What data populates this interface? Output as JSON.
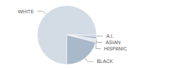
{
  "chart_data": {
    "type": "pie",
    "categories": [
      "WHITE",
      "A.I.",
      "ASIAN",
      "HISPANIC",
      "BLACK"
    ],
    "values": [
      75,
      1,
      1,
      2,
      21
    ],
    "colors": [
      "#d3dbe4",
      "#c2ccd8",
      "#8fa5bd",
      "#e2e8ef",
      "#a9b9ca"
    ]
  }
}
